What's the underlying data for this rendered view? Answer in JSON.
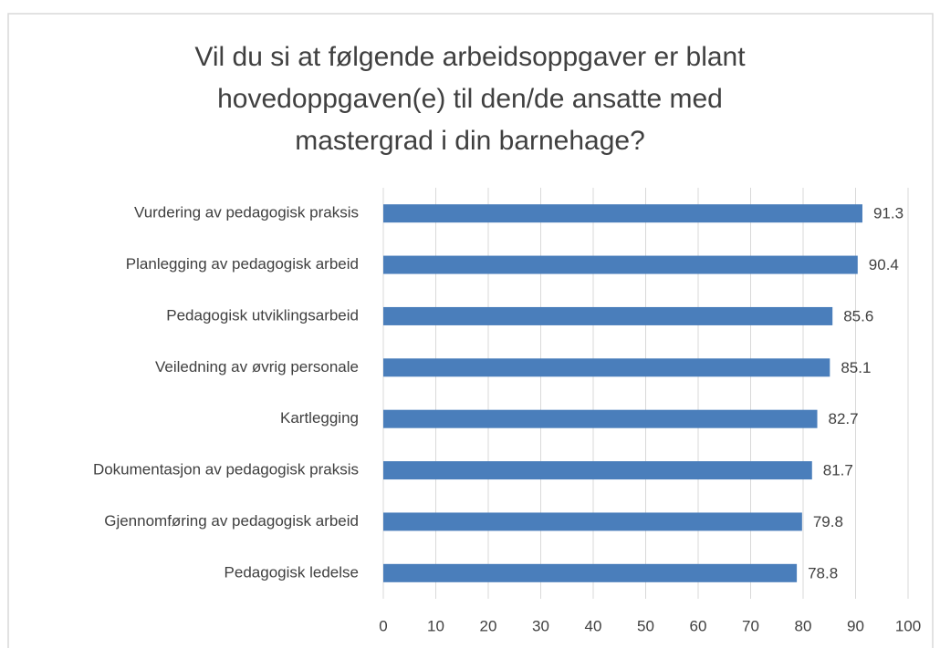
{
  "chart_data": {
    "type": "bar",
    "orientation": "horizontal",
    "title": "Vil du si at følgende arbeidsoppgaver er blant hovedoppgaven(e) til den/de ansatte med mastergrad i din barnehage?",
    "categories": [
      "Vurdering av pedagogisk praksis",
      "Planlegging av pedagogisk arbeid",
      "Pedagogisk utviklingsarbeid",
      "Veiledning av øvrig personale",
      "Kartlegging",
      "Dokumentasjon av pedagogisk praksis",
      "Gjennomføring av pedagogisk arbeid",
      "Pedagogisk ledelse"
    ],
    "values": [
      91.3,
      90.4,
      85.6,
      85.1,
      82.7,
      81.7,
      79.8,
      78.8
    ],
    "color": "#4a7ebb",
    "xlim": [
      0,
      100
    ],
    "xticks": [
      0,
      10,
      20,
      30,
      40,
      50,
      60,
      70,
      80,
      90,
      100
    ],
    "grid": true
  }
}
